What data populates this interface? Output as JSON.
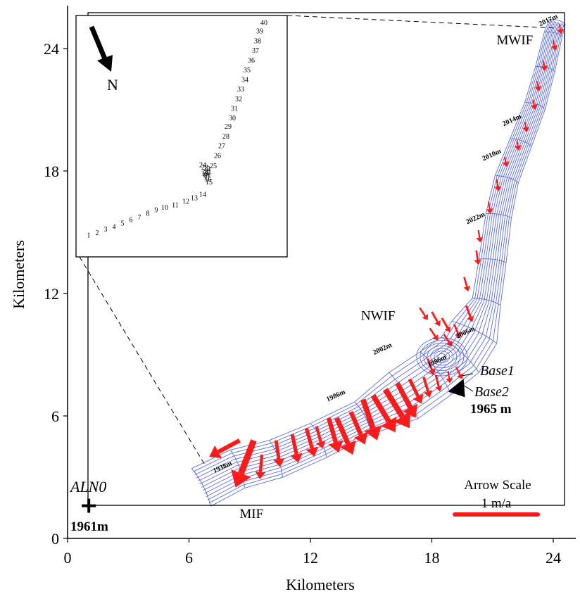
{
  "chart_data": {
    "type": "line",
    "xlabel": "Kilometers",
    "ylabel": "Kilometers",
    "xlim": [
      0,
      25
    ],
    "ylim": [
      0,
      26
    ],
    "x_ticks": [
      "0",
      "6",
      "12",
      "18",
      "24"
    ],
    "y_ticks": [
      "0",
      "6",
      "12",
      "18",
      "24"
    ],
    "grid": false,
    "regions": [
      {
        "name": "MWIF",
        "x": 21.2,
        "y": 24.2
      },
      {
        "name": "NWIF",
        "x": 14.5,
        "y": 10.7
      },
      {
        "name": "MIF",
        "x": 8.5,
        "y": 1.0
      }
    ],
    "contour_labels": [
      {
        "text": "2017m",
        "x": 23.8,
        "y": 25.3
      },
      {
        "text": "2014m",
        "x": 22.0,
        "y": 20.4
      },
      {
        "text": "2010m",
        "x": 21.0,
        "y": 18.7
      },
      {
        "text": "2022m",
        "x": 20.2,
        "y": 15.6
      },
      {
        "text": "2006m",
        "x": 19.7,
        "y": 10.0
      },
      {
        "text": "2002m",
        "x": 15.6,
        "y": 9.2
      },
      {
        "text": "1996m",
        "x": 18.3,
        "y": 8.6
      },
      {
        "text": "1986m",
        "x": 13.3,
        "y": 6.9
      },
      {
        "text": "1938m",
        "x": 7.7,
        "y": 3.4
      }
    ],
    "labels": {
      "base1": "Base1",
      "base2": "Base2",
      "base_elev": "1965 m",
      "station": "ALN0",
      "station_elev": "1961m",
      "arrow_scale_title": "Arrow Scale",
      "arrow_scale_value": "1 m/a",
      "north": "N"
    },
    "station": {
      "x": 1.05,
      "y": 1.6
    },
    "base_marker": {
      "x": 19.5,
      "y": 7.4
    },
    "centerline": [
      [
        6.6,
        2.5
      ],
      [
        8.4,
        3.4
      ],
      [
        10.3,
        3.9
      ],
      [
        12.4,
        4.8
      ],
      [
        14.6,
        5.9
      ],
      [
        16.6,
        7.0
      ],
      [
        18.2,
        8.1
      ],
      [
        19.4,
        9.0
      ],
      [
        20.1,
        10.1
      ],
      [
        20.7,
        11.6
      ],
      [
        21.0,
        13.6
      ],
      [
        21.3,
        15.8
      ],
      [
        21.7,
        17.6
      ],
      [
        22.4,
        19.4
      ],
      [
        23.1,
        21.2
      ],
      [
        23.6,
        23.0
      ],
      [
        24.0,
        24.7
      ],
      [
        24.2,
        25.3
      ]
    ],
    "velocity_arrows": [
      {
        "x": 8.5,
        "y": 4.8,
        "dx": -1.5,
        "dy": -0.8
      },
      {
        "x": 9.2,
        "y": 4.8,
        "dx": -0.9,
        "dy": -2.3
      },
      {
        "x": 9.6,
        "y": 4.1,
        "dx": -0.1,
        "dy": -1.2
      },
      {
        "x": 10.3,
        "y": 4.8,
        "dx": 0.2,
        "dy": -1.3
      },
      {
        "x": 11.1,
        "y": 5.1,
        "dx": 0.3,
        "dy": -1.4
      },
      {
        "x": 11.8,
        "y": 5.4,
        "dx": 0.4,
        "dy": -1.4
      },
      {
        "x": 12.3,
        "y": 5.5,
        "dx": 0.3,
        "dy": -1.1
      },
      {
        "x": 12.9,
        "y": 5.9,
        "dx": 0.5,
        "dy": -1.7
      },
      {
        "x": 13.3,
        "y": 5.9,
        "dx": 0.8,
        "dy": -1.8
      },
      {
        "x": 14.0,
        "y": 6.2,
        "dx": 0.7,
        "dy": -1.6
      },
      {
        "x": 14.6,
        "y": 6.8,
        "dx": 0.7,
        "dy": -2.0
      },
      {
        "x": 15.1,
        "y": 7.0,
        "dx": 1.1,
        "dy": -1.8
      },
      {
        "x": 15.7,
        "y": 7.3,
        "dx": 1.2,
        "dy": -1.9
      },
      {
        "x": 16.3,
        "y": 7.6,
        "dx": 0.9,
        "dy": -1.7
      },
      {
        "x": 16.9,
        "y": 7.8,
        "dx": 0.6,
        "dy": -1.2
      },
      {
        "x": 17.6,
        "y": 7.9,
        "dx": 0.3,
        "dy": -1.0
      },
      {
        "x": 18.2,
        "y": 8.0,
        "dx": 0.2,
        "dy": -0.8
      },
      {
        "x": 18.8,
        "y": 8.2,
        "dx": 0.1,
        "dy": -0.6
      },
      {
        "x": 17.8,
        "y": 8.8,
        "dx": 0.3,
        "dy": -0.8
      },
      {
        "x": 19.2,
        "y": 8.4,
        "dx": 0.3,
        "dy": -0.6
      },
      {
        "x": 17.4,
        "y": 11.3,
        "dx": 0.4,
        "dy": -0.6
      },
      {
        "x": 18.0,
        "y": 11.1,
        "dx": 0.4,
        "dy": -0.7
      },
      {
        "x": 18.5,
        "y": 10.8,
        "dx": 0.4,
        "dy": -0.7
      },
      {
        "x": 19.1,
        "y": 10.5,
        "dx": 0.3,
        "dy": -0.7
      },
      {
        "x": 17.9,
        "y": 10.3,
        "dx": 0.4,
        "dy": -0.6
      },
      {
        "x": 18.6,
        "y": 10.0,
        "dx": 0.4,
        "dy": -0.6
      },
      {
        "x": 19.7,
        "y": 11.4,
        "dx": 0.3,
        "dy": -0.8
      },
      {
        "x": 19.6,
        "y": 12.8,
        "dx": 0.2,
        "dy": -0.7
      },
      {
        "x": 20.2,
        "y": 14.1,
        "dx": 0.1,
        "dy": -0.7
      },
      {
        "x": 20.3,
        "y": 15.1,
        "dx": 0.1,
        "dy": -0.6
      },
      {
        "x": 20.8,
        "y": 16.5,
        "dx": 0.1,
        "dy": -0.6
      },
      {
        "x": 21.2,
        "y": 17.6,
        "dx": 0.1,
        "dy": -0.6
      },
      {
        "x": 21.6,
        "y": 18.7,
        "dx": 0.1,
        "dy": -0.5
      },
      {
        "x": 22.2,
        "y": 19.5,
        "dx": 0.1,
        "dy": -0.5
      },
      {
        "x": 22.6,
        "y": 20.4,
        "dx": 0.1,
        "dy": -0.5
      },
      {
        "x": 23.0,
        "y": 21.5,
        "dx": 0.1,
        "dy": -0.5
      },
      {
        "x": 23.2,
        "y": 22.4,
        "dx": 0.1,
        "dy": -0.5
      },
      {
        "x": 23.5,
        "y": 23.4,
        "dx": 0.1,
        "dy": -0.5
      },
      {
        "x": 24.0,
        "y": 24.4,
        "dx": 0.1,
        "dy": -0.5
      },
      {
        "x": 24.3,
        "y": 25.2,
        "dx": 0.1,
        "dy": -0.5
      }
    ],
    "inset_points": [
      {
        "n": "1",
        "x": 0.06,
        "y": 0.92
      },
      {
        "n": "2",
        "x": 0.1,
        "y": 0.91
      },
      {
        "n": "3",
        "x": 0.14,
        "y": 0.895
      },
      {
        "n": "4",
        "x": 0.18,
        "y": 0.885
      },
      {
        "n": "5",
        "x": 0.22,
        "y": 0.87
      },
      {
        "n": "6",
        "x": 0.26,
        "y": 0.855
      },
      {
        "n": "7",
        "x": 0.3,
        "y": 0.845
      },
      {
        "n": "8",
        "x": 0.34,
        "y": 0.83
      },
      {
        "n": "9",
        "x": 0.38,
        "y": 0.815
      },
      {
        "n": "10",
        "x": 0.42,
        "y": 0.805
      },
      {
        "n": "11",
        "x": 0.47,
        "y": 0.795
      },
      {
        "n": "12",
        "x": 0.52,
        "y": 0.78
      },
      {
        "n": "13",
        "x": 0.56,
        "y": 0.765
      },
      {
        "n": "14",
        "x": 0.6,
        "y": 0.75
      },
      {
        "n": "15",
        "x": 0.63,
        "y": 0.7
      },
      {
        "n": "16",
        "x": 0.625,
        "y": 0.69
      },
      {
        "n": "17",
        "x": 0.62,
        "y": 0.68
      },
      {
        "n": "18",
        "x": 0.615,
        "y": 0.67
      },
      {
        "n": "19",
        "x": 0.61,
        "y": 0.665
      },
      {
        "n": "20",
        "x": 0.62,
        "y": 0.66
      },
      {
        "n": "21",
        "x": 0.625,
        "y": 0.655
      },
      {
        "n": "22",
        "x": 0.62,
        "y": 0.645
      },
      {
        "n": "23",
        "x": 0.61,
        "y": 0.638
      },
      {
        "n": "24",
        "x": 0.6,
        "y": 0.628
      },
      {
        "n": "25",
        "x": 0.65,
        "y": 0.632
      },
      {
        "n": "26",
        "x": 0.67,
        "y": 0.59
      },
      {
        "n": "27",
        "x": 0.69,
        "y": 0.55
      },
      {
        "n": "28",
        "x": 0.71,
        "y": 0.51
      },
      {
        "n": "29",
        "x": 0.72,
        "y": 0.47
      },
      {
        "n": "30",
        "x": 0.74,
        "y": 0.435
      },
      {
        "n": "31",
        "x": 0.75,
        "y": 0.395
      },
      {
        "n": "32",
        "x": 0.77,
        "y": 0.355
      },
      {
        "n": "33",
        "x": 0.78,
        "y": 0.315
      },
      {
        "n": "34",
        "x": 0.8,
        "y": 0.275
      },
      {
        "n": "35",
        "x": 0.81,
        "y": 0.235
      },
      {
        "n": "36",
        "x": 0.83,
        "y": 0.195
      },
      {
        "n": "37",
        "x": 0.85,
        "y": 0.155
      },
      {
        "n": "38",
        "x": 0.86,
        "y": 0.115
      },
      {
        "n": "39",
        "x": 0.87,
        "y": 0.075
      },
      {
        "n": "40",
        "x": 0.89,
        "y": 0.04
      }
    ],
    "colors": {
      "contour": "#5b6bdc",
      "arrow": "#ff1a1a",
      "frame": "#000000"
    }
  }
}
